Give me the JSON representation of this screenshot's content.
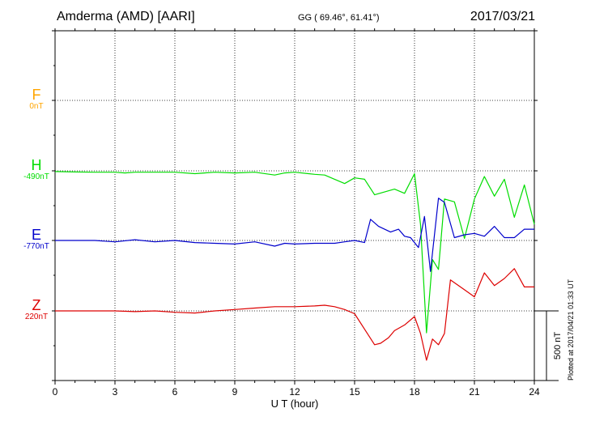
{
  "header": {
    "station": "Amderma (AMD)  [AARI]",
    "coords": "GG ( 69.46°,  61.41°)",
    "date": "2017/03/21"
  },
  "footer": {
    "plotted": "Plotted at 2017/04/21 01:33 UT"
  },
  "chart_data": {
    "type": "line",
    "title": "Amderma (AMD)  [AARI]",
    "xlabel": "U T (hour)",
    "xlim": [
      0,
      24
    ],
    "x_ticks": [
      "0",
      "3",
      "6",
      "9",
      "12",
      "15",
      "18",
      "21",
      "24"
    ],
    "grid": true,
    "scale_bar": {
      "label": "500 nT",
      "value_nT": 500
    },
    "series": [
      {
        "name": "F",
        "offset_label": "0nT",
        "color": "#ffa500",
        "baseline_index": 1,
        "x": [],
        "values": []
      },
      {
        "name": "H",
        "offset_label": "-490nT",
        "color": "#00dd00",
        "baseline_index": 2,
        "x": [
          0,
          1,
          2,
          3,
          3.5,
          4,
          5,
          6,
          7,
          7.5,
          8,
          9,
          10,
          11,
          11.5,
          12,
          13,
          13.5,
          14,
          14.5,
          15,
          15.5,
          16,
          16.5,
          17,
          17.5,
          18,
          18.3,
          18.6,
          18.9,
          19.2,
          19.5,
          20,
          20.5,
          21,
          21.5,
          22,
          22.5,
          23,
          23.5,
          24
        ],
        "values": [
          -5,
          -8,
          -10,
          -10,
          -15,
          -10,
          -10,
          -10,
          -20,
          -15,
          -10,
          -15,
          -10,
          -30,
          -15,
          -10,
          -25,
          -30,
          -60,
          -90,
          -50,
          -60,
          -170,
          -150,
          -130,
          -160,
          -20,
          -380,
          -1150,
          -630,
          -700,
          -200,
          -220,
          -480,
          -200,
          -40,
          -180,
          -60,
          -330,
          -100,
          -380
        ]
      },
      {
        "name": "E",
        "offset_label": "-770nT",
        "color": "#0000cc",
        "baseline_index": 3,
        "x": [
          0,
          1,
          2,
          3,
          4,
          5,
          6,
          7,
          8,
          9,
          10,
          11,
          11.5,
          12,
          13,
          14,
          14.5,
          15,
          15.5,
          15.8,
          16.2,
          16.8,
          17.2,
          17.5,
          17.8,
          18.2,
          18.5,
          18.8,
          19.2,
          19.5,
          20,
          20.5,
          21,
          21.5,
          22,
          22.5,
          23,
          23.5,
          24
        ],
        "values": [
          0,
          0,
          0,
          -10,
          5,
          -10,
          0,
          -15,
          -20,
          -25,
          -10,
          -40,
          -20,
          -25,
          -20,
          -20,
          -10,
          0,
          -15,
          150,
          100,
          60,
          80,
          30,
          20,
          -50,
          170,
          -220,
          300,
          270,
          20,
          40,
          50,
          30,
          100,
          20,
          20,
          80,
          80
        ]
      },
      {
        "name": "Z",
        "offset_label": "220nT",
        "color": "#dd0000",
        "baseline_index": 4,
        "x": [
          0,
          1,
          2,
          3,
          4,
          5,
          6,
          7,
          8,
          9,
          10,
          11,
          12,
          13,
          13.5,
          14,
          14.5,
          15,
          15.5,
          16,
          16.3,
          16.7,
          17,
          17.5,
          18,
          18.3,
          18.6,
          18.9,
          19.2,
          19.5,
          19.8,
          20.5,
          21,
          21.5,
          22,
          22.5,
          23,
          23.5,
          24
        ],
        "values": [
          0,
          0,
          0,
          0,
          -5,
          0,
          -10,
          -15,
          0,
          10,
          20,
          30,
          30,
          35,
          40,
          30,
          10,
          -20,
          -130,
          -240,
          -230,
          -190,
          -140,
          -100,
          -40,
          -160,
          -350,
          -200,
          -240,
          -160,
          220,
          150,
          100,
          270,
          180,
          230,
          300,
          170,
          170
        ]
      }
    ]
  }
}
